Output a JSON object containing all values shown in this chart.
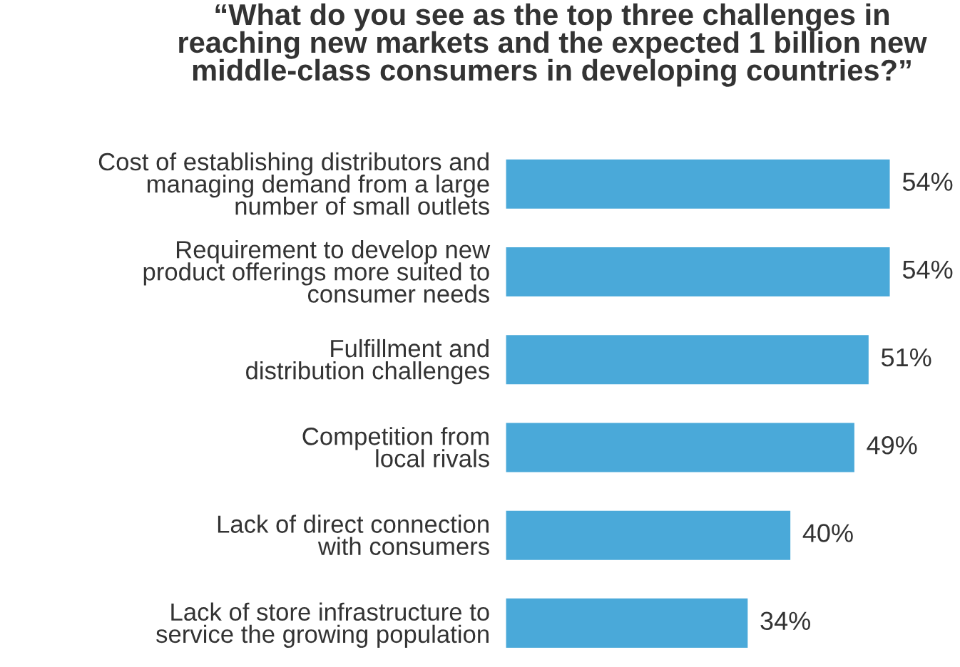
{
  "chart_data": {
    "type": "bar",
    "orientation": "horizontal",
    "title": "“What do you see as the top three challenges in\nreaching new markets and the expected 1 billion new\nmiddle-class consumers in developing countries?”",
    "categories": [
      "Cost of establishing distributors and\nmanaging demand from a large\nnumber of small outlets",
      "Requirement to develop new\nproduct offerings more suited to\nconsumer needs",
      "Fulfillment and\ndistribution challenges",
      "Competition from\nlocal rivals",
      "Lack of direct connection\nwith consumers",
      "Lack of store infrastructure to\nservice the growing population"
    ],
    "values": [
      54,
      54,
      51,
      49,
      40,
      34
    ],
    "value_labels": [
      "54%",
      "54%",
      "51%",
      "49%",
      "40%",
      "34%"
    ],
    "color": "#4aa9d9",
    "grid": false,
    "legend": false
  }
}
